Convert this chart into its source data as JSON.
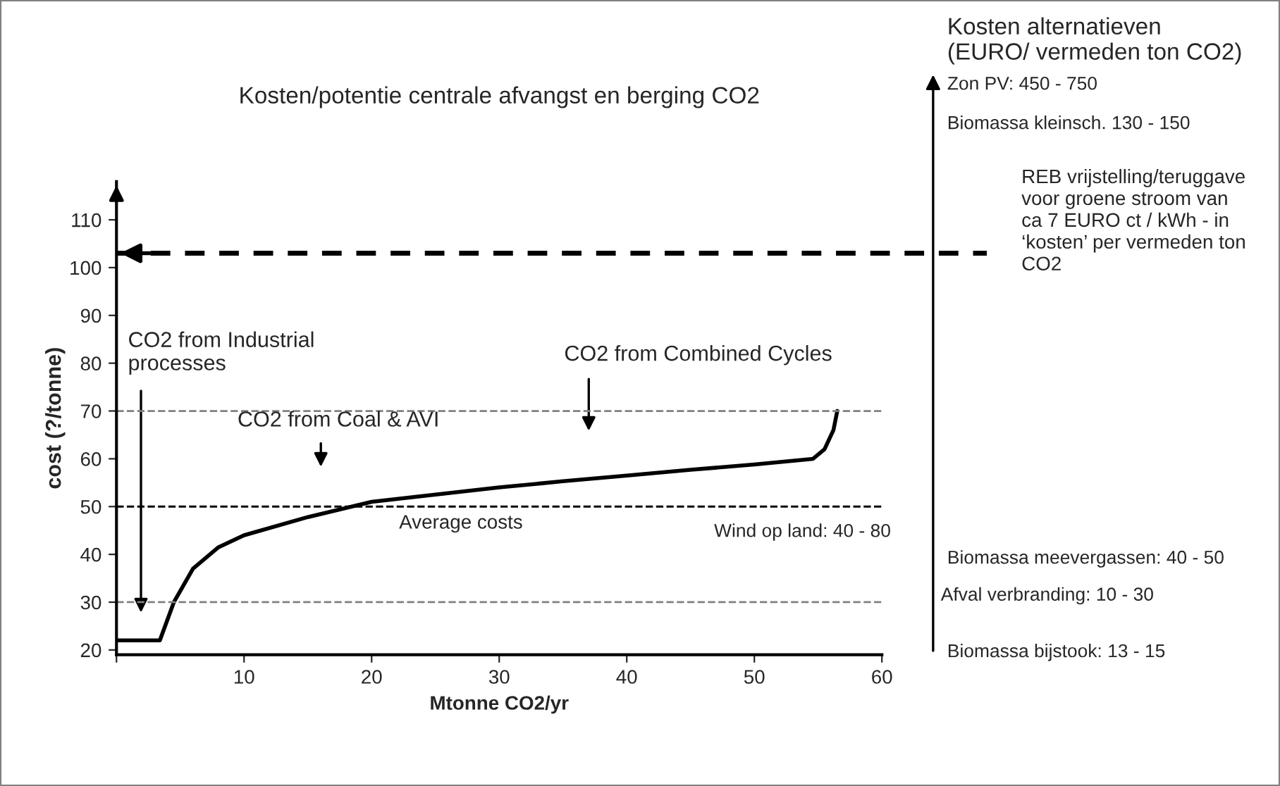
{
  "chart_data": {
    "type": "line",
    "title": "Kosten/potentie centrale afvangst en berging CO2",
    "xlabel": "Mtonne CO2/yr",
    "ylabel": "cost (?/tonne)",
    "series": [
      {
        "color": "#000000",
        "x": [
          0,
          3.4,
          4.5,
          6,
          8,
          10,
          15,
          20,
          25,
          30,
          35,
          40,
          45,
          50,
          54.6,
          55.5,
          56.2,
          56.5
        ],
        "values": [
          22,
          22,
          30,
          37,
          41.5,
          44,
          47.8,
          51,
          52.5,
          54,
          55.3,
          56.5,
          57.7,
          58.8,
          60,
          62,
          66,
          70
        ]
      }
    ],
    "xlim": [
      0,
      60
    ],
    "ylim": [
      19,
      118
    ],
    "xticks": [
      {
        "value": 0,
        "label": null
      },
      10,
      20,
      30,
      40,
      50,
      60
    ],
    "yticks": [
      20,
      30,
      40,
      50,
      60,
      70,
      80,
      90,
      100,
      110
    ],
    "line_style": "solid",
    "ref_lines": [
      {
        "axis": "y",
        "value": 70,
        "color": "#808080",
        "line_style": "dashed"
      },
      {
        "axis": "y",
        "value": 50,
        "label": "Average costs",
        "color": "#000000",
        "line_style": "dashed"
      },
      {
        "axis": "y",
        "value": 30,
        "color": "#808080",
        "line_style": "dashed"
      },
      {
        "axis": "y",
        "value": 103,
        "label": "REB vrijstelling/teruggave\nvoor groene stroom van\nca 7 EURO ct / kWh - in\n‘kosten’ per vermeden ton\nCO2",
        "color": "#000000",
        "line_style": "dashed"
      }
    ],
    "annotations": [
      "Kosten alternatieven\n(EURO/ vermeden ton CO2)",
      "Zon PV: 450 - 750",
      "Biomassa kleinsch. 130 - 150",
      "Wind op land: 40 - 80",
      "Biomassa meevergassen: 40 - 50",
      "Afval verbranding: 10 - 30",
      "Biomassa bijstook: 13 - 15",
      "CO2 from Industrial\nprocesses",
      "CO2 from Coal & AVI",
      "CO2 from Combined Cycles"
    ]
  }
}
